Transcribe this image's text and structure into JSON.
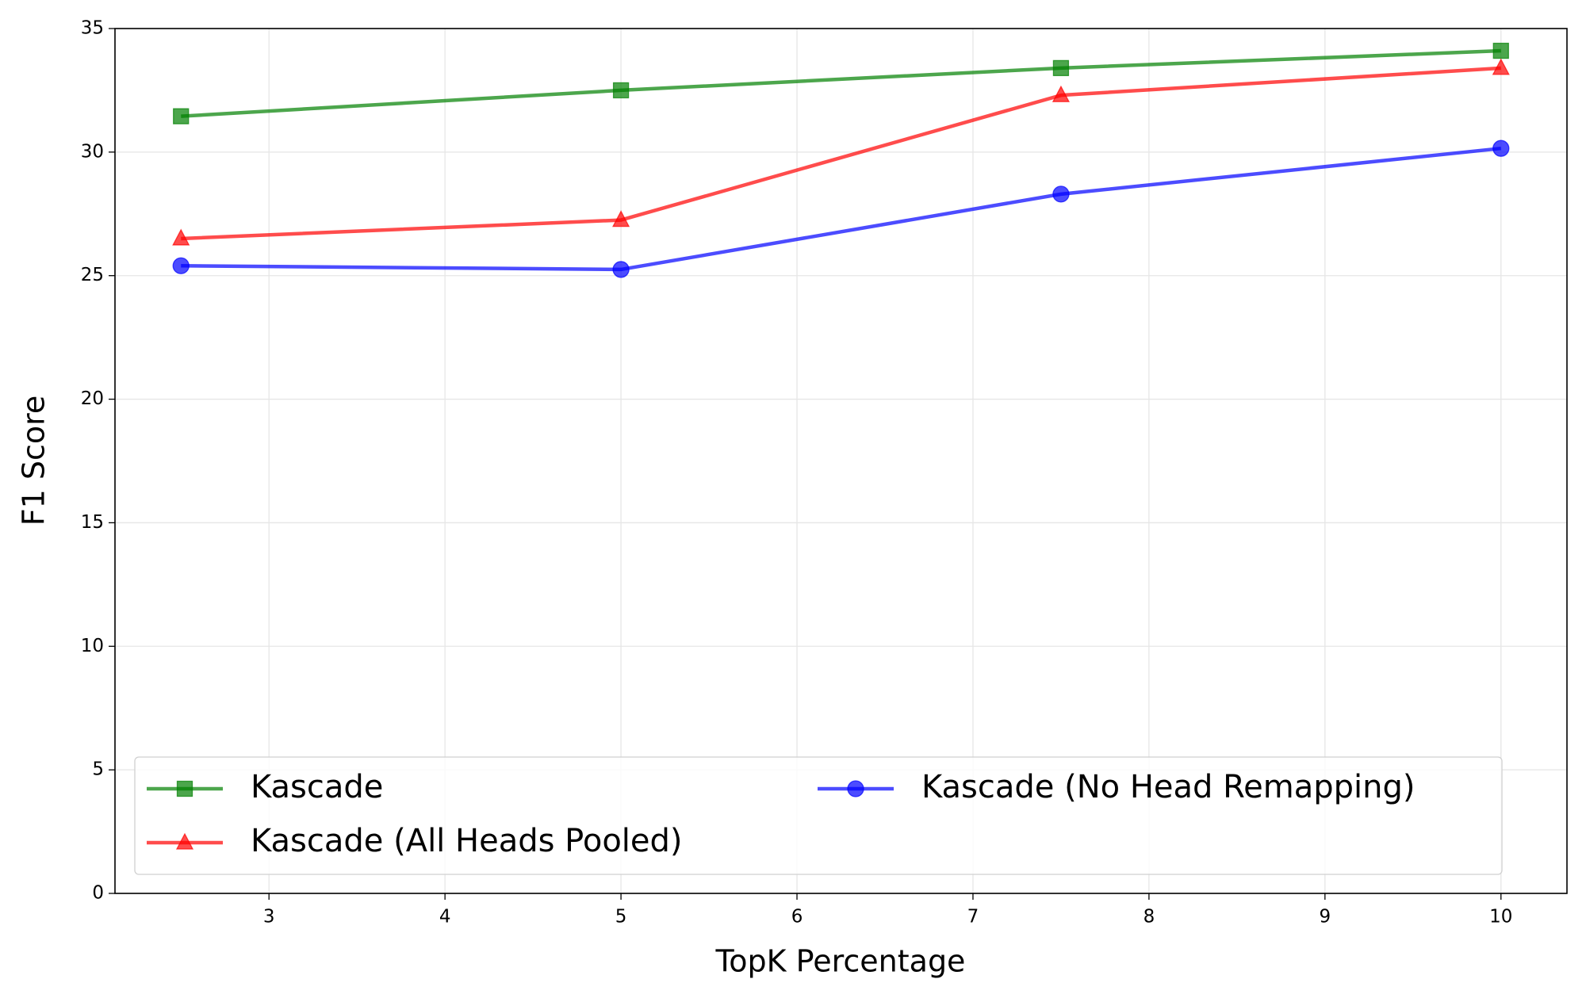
{
  "chart_data": {
    "type": "line",
    "x_label": "TopK Percentage",
    "y_label": "F1 Score",
    "x": [
      2.5,
      5,
      7.5,
      10
    ],
    "series": [
      {
        "name": "Kascade",
        "color": "#008000",
        "marker": "square",
        "values": [
          31.45,
          32.5,
          33.4,
          34.1
        ]
      },
      {
        "name": "Kascade (All Heads Pooled)",
        "color": "#ff0000",
        "marker": "triangle",
        "values": [
          26.5,
          27.25,
          32.3,
          33.4
        ]
      },
      {
        "name": "Kascade (No Head Remapping)",
        "color": "#0000ff",
        "marker": "circle",
        "values": [
          25.4,
          25.25,
          28.3,
          30.15
        ]
      }
    ],
    "xlim": [
      2.125,
      10.375
    ],
    "xticks": [
      3,
      4,
      5,
      6,
      7,
      8,
      9,
      10
    ],
    "ylim": [
      0,
      35
    ],
    "yticks": [
      0,
      5,
      10,
      15,
      20,
      25,
      30,
      35
    ],
    "grid": true,
    "legend_loc": "lower left",
    "legend_columns": 2
  }
}
